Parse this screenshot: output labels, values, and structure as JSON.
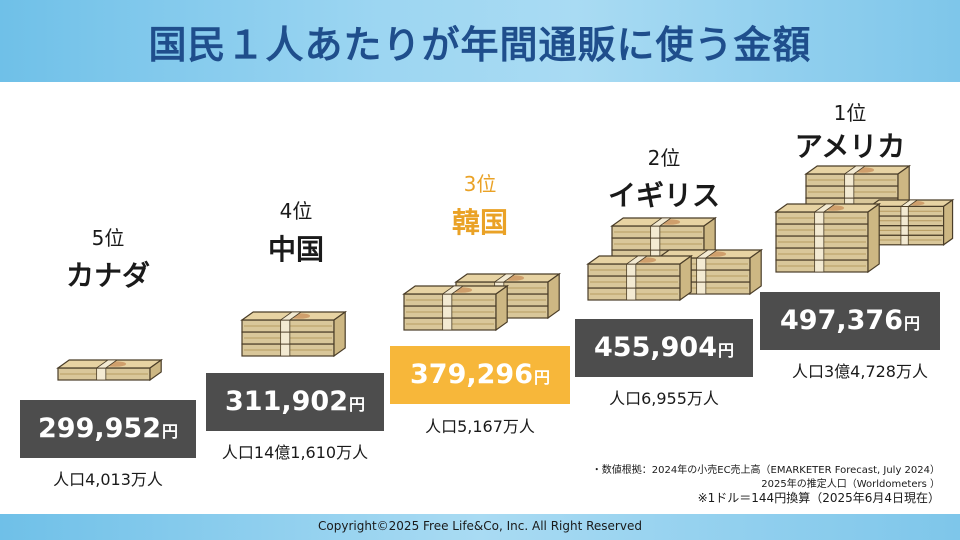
{
  "title": "国民１人あたりが年間通販に使う金額",
  "chart_data": {
    "type": "bar",
    "categories": [
      "カナダ",
      "中国",
      "韓国",
      "イギリス",
      "アメリカ"
    ],
    "ranks": [
      "5位",
      "4位",
      "3位",
      "2位",
      "1位"
    ],
    "values": [
      299952,
      311902,
      379296,
      455904,
      497376
    ],
    "value_labels": [
      "299,952",
      "311,902",
      "379,296",
      "455,904",
      "497,376"
    ],
    "unit": "円",
    "population": [
      "人口4,013万人",
      "人口14億1,610万人",
      "人口5,167万人",
      "人口6,955万人",
      "人口3億4,728万人"
    ],
    "highlight_color": "#f7b73a",
    "box_color": "#4d4d4d"
  },
  "notes": [
    "・数値根拠：2024年の小売EC売上高（EMARKETER Forecast, July 2024）",
    "2025年の推定人口（Worldometers ）",
    "※1ドル＝144円換算（2025年6月4日現在）"
  ],
  "footer": "Copyright©2025 Free Life&Co, Inc. All Right Reserved"
}
